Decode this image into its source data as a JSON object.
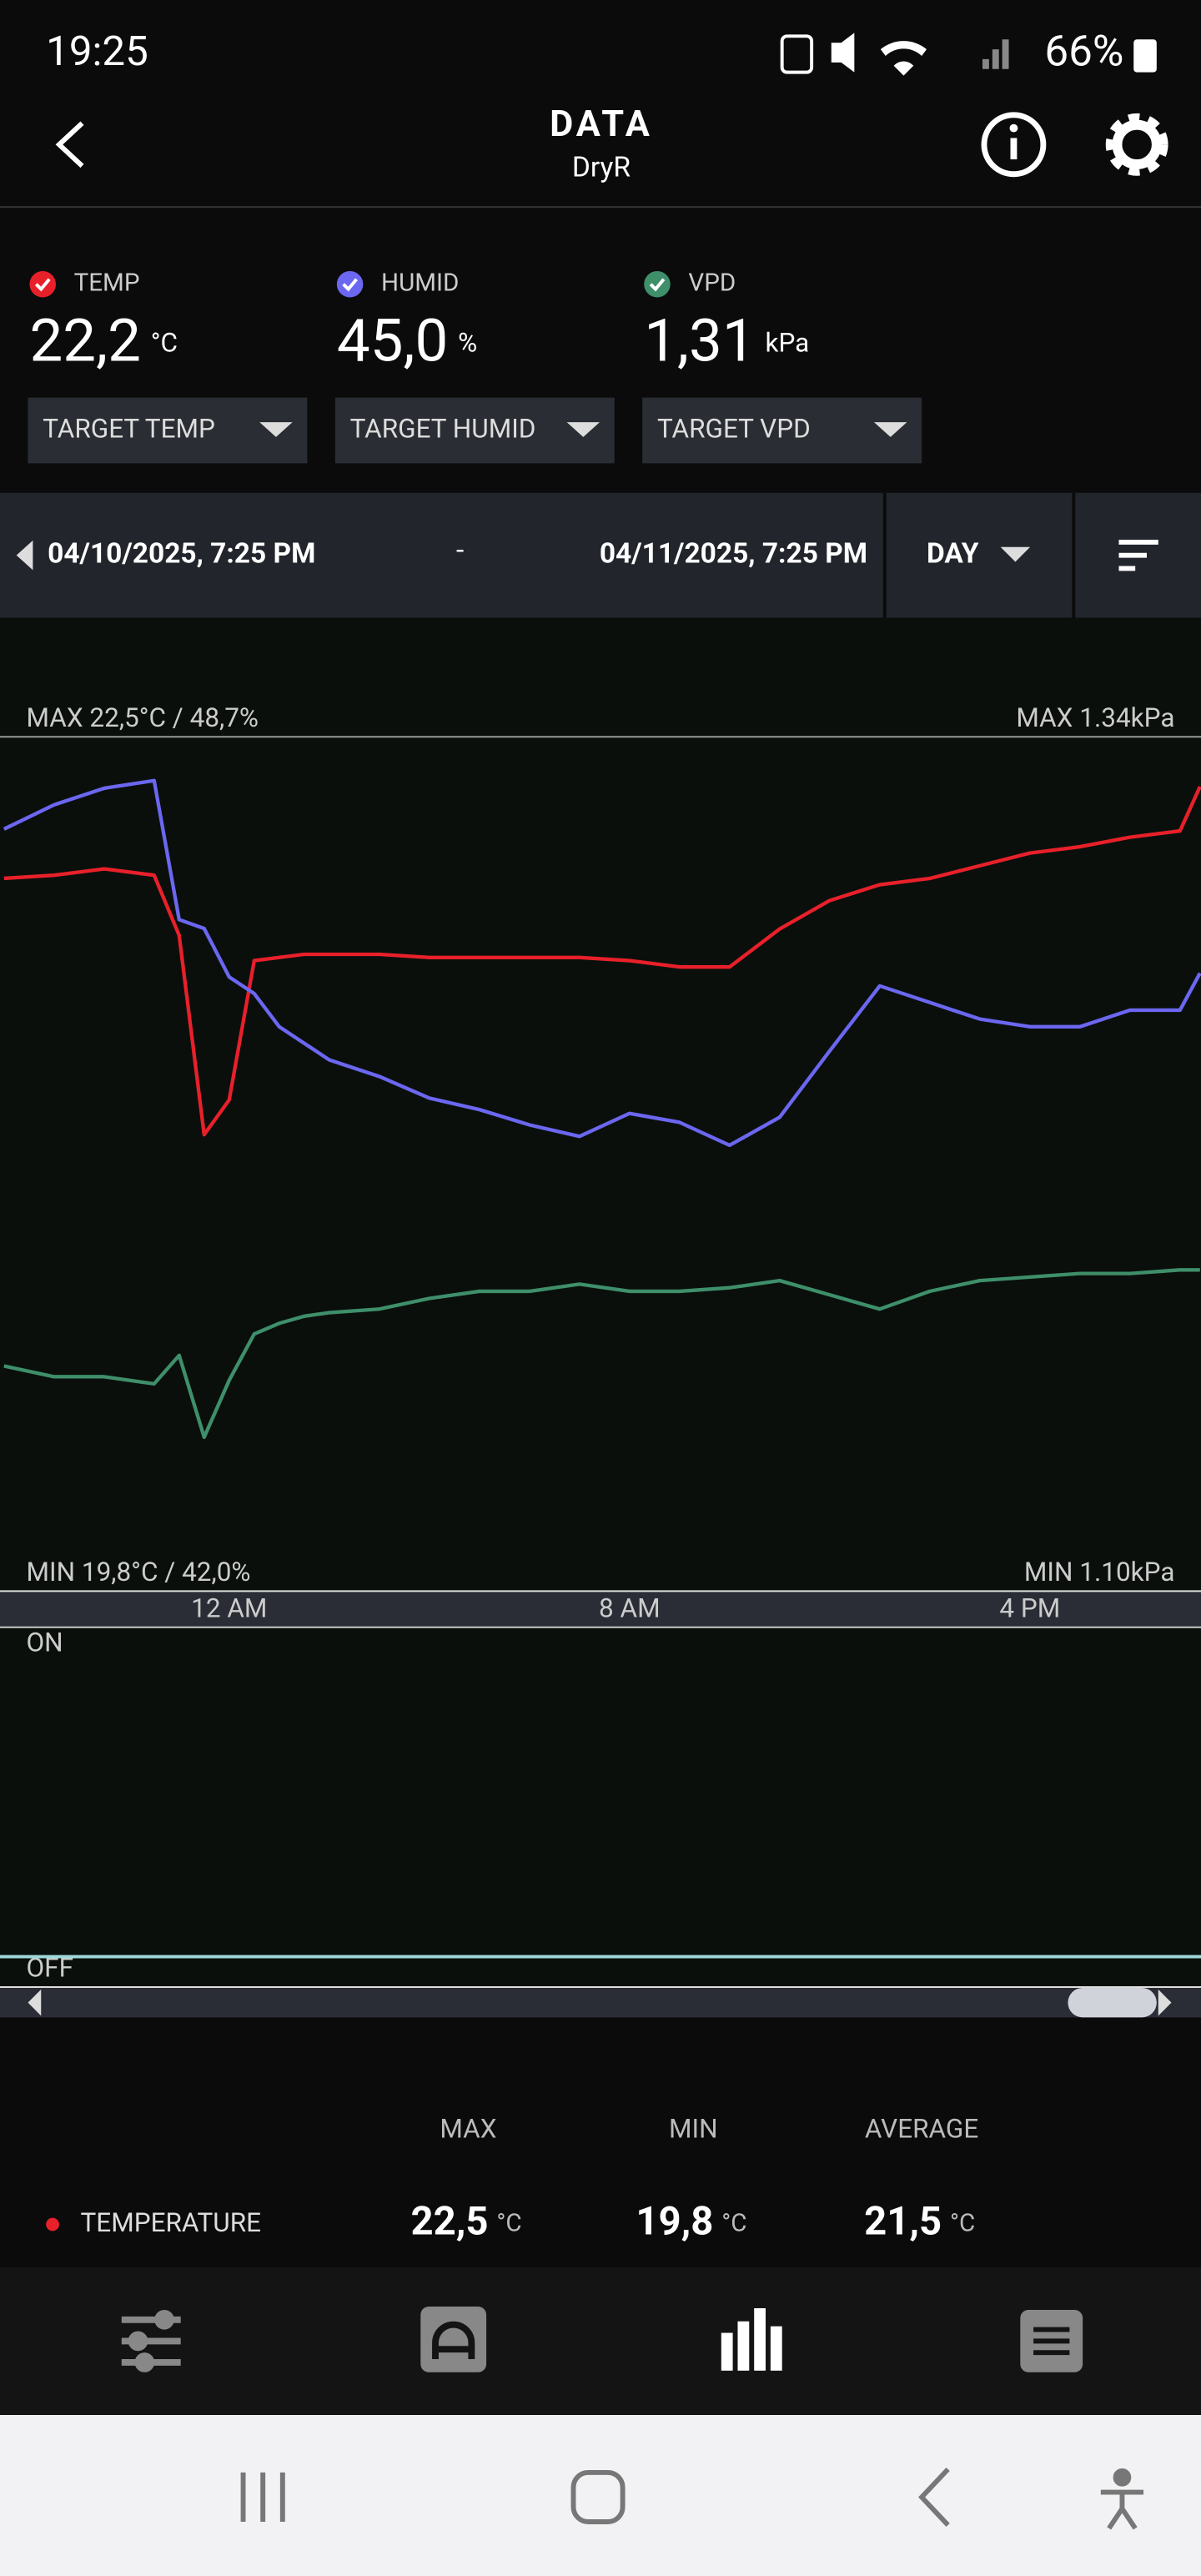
{
  "status_bar": {
    "time": "19:25",
    "battery": "66%"
  },
  "header": {
    "title": "DATA",
    "subtitle": "DryR"
  },
  "readings": [
    {
      "label": "TEMP",
      "value": "22,2",
      "unit": "°C",
      "target": "TARGET TEMP"
    },
    {
      "label": "HUMID",
      "value": "45,0",
      "unit": "%",
      "target": "TARGET HUMID"
    },
    {
      "label": "VPD",
      "value": "1,31",
      "unit": "kPa",
      "target": "TARGET VPD"
    }
  ],
  "date_range": {
    "start": "04/10/2025, 7:25 PM",
    "separator": "-",
    "end": "04/11/2025, 7:25 PM",
    "period": "DAY"
  },
  "chart_data": {
    "type": "line",
    "max_label_left": "MAX 22,5°C / 48,7%",
    "max_label_right": "MAX 1.34kPa",
    "min_label_left": "MIN 19,8°C / 42,0%",
    "min_label_right": "MIN 1.10kPa",
    "x": [
      -4.5,
      -3.5,
      -2.5,
      -1.5,
      -1,
      -0.5,
      0,
      0.5,
      1,
      1.5,
      2,
      3,
      4,
      5,
      6,
      7,
      8,
      9,
      10,
      11,
      12,
      13,
      14,
      15,
      16,
      17,
      18,
      19,
      19.4
    ],
    "xlim": [
      -4.58,
      19.42
    ],
    "xticks": [
      {
        "value": 0,
        "label": "12 AM"
      },
      {
        "value": 8,
        "label": "8 AM"
      },
      {
        "value": 16,
        "label": "4 PM"
      }
    ],
    "ylim": [
      19.8,
      22.5
    ],
    "y2lim": [
      42.0,
      48.7
    ],
    "y3lim": [
      1.1,
      1.34
    ],
    "series": [
      {
        "name": "TEMP",
        "color": "#e8202a",
        "axis": "y",
        "values": [
          22.05,
          22.06,
          22.08,
          22.06,
          21.87,
          21.24,
          21.35,
          21.79,
          21.8,
          21.81,
          21.81,
          21.81,
          21.8,
          21.8,
          21.8,
          21.8,
          21.79,
          21.77,
          21.77,
          21.89,
          21.98,
          22.03,
          22.05,
          22.09,
          22.13,
          22.15,
          22.18,
          22.2,
          22.34
        ]
      },
      {
        "name": "HUMID",
        "color": "#6b67f0",
        "axis": "y2",
        "values": [
          47.97,
          48.16,
          48.29,
          48.35,
          47.26,
          47.19,
          46.81,
          46.68,
          46.42,
          46.29,
          46.16,
          46.03,
          45.86,
          45.77,
          45.65,
          45.56,
          45.74,
          45.67,
          45.49,
          45.71,
          46.23,
          46.74,
          46.61,
          46.48,
          46.42,
          46.42,
          46.55,
          46.55,
          46.84
        ]
      },
      {
        "name": "VPD",
        "color": "#3e8f6a",
        "axis": "y3",
        "values": [
          1.163,
          1.16,
          1.16,
          1.158,
          1.166,
          1.143,
          1.159,
          1.172,
          1.175,
          1.177,
          1.178,
          1.179,
          1.182,
          1.184,
          1.184,
          1.186,
          1.184,
          1.184,
          1.185,
          1.187,
          1.183,
          1.179,
          1.184,
          1.187,
          1.188,
          1.189,
          1.189,
          1.19,
          1.19
        ]
      }
    ]
  },
  "toggle_chart": {
    "on": "ON",
    "off": "OFF"
  },
  "stats": {
    "headers": [
      "MAX",
      "MIN",
      "AVERAGE"
    ],
    "rows": [
      {
        "name": "TEMPERATURE",
        "values": [
          "22,5",
          "19,8",
          "21,5"
        ],
        "unit": "°C"
      }
    ]
  }
}
